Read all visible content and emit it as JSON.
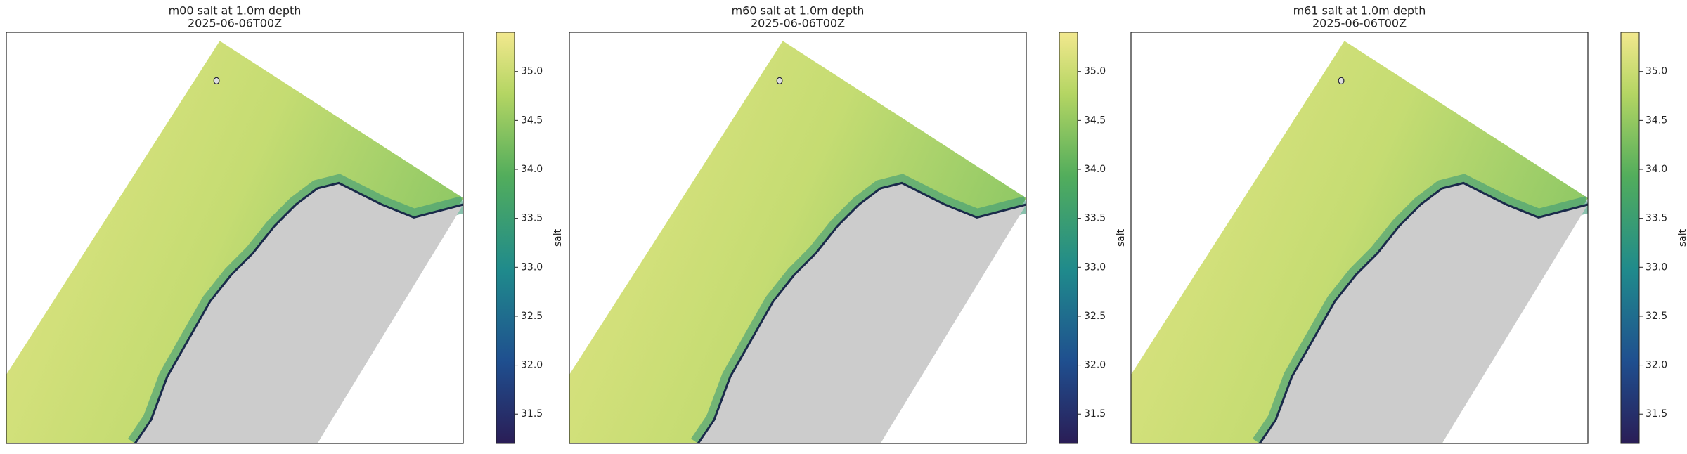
{
  "panels": [
    {
      "title": [
        "m00 salt at 1.0m depth",
        "2025-06-06T00Z"
      ]
    },
    {
      "title": [
        "m60 salt at 1.0m depth",
        "2025-06-06T00Z"
      ]
    },
    {
      "title": [
        "m61 salt at 1.0m depth",
        "2025-06-06T00Z"
      ]
    }
  ],
  "colorbar": {
    "label": "salt",
    "lim": [
      31.2,
      35.4
    ],
    "ticks": [
      31.5,
      {
        "value": 32,
        "label": "32.0"
      },
      32.5,
      {
        "value": 33,
        "label": "33.0"
      },
      33.5,
      {
        "value": 34,
        "label": "34.0"
      },
      34.5,
      {
        "value": 35,
        "label": "35.0"
      }
    ]
  }
}
